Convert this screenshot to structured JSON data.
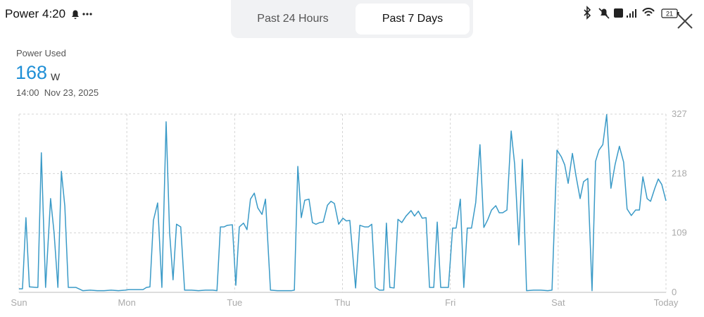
{
  "status_bar": {
    "app_title": "Power",
    "time": "4:20",
    "battery": "21"
  },
  "tabs": [
    "Past 24 Hours",
    "Past 7 Days"
  ],
  "summary": {
    "label": "Power Used",
    "value": "168",
    "unit": "W",
    "timestamp": "14:00  Nov 23, 2025"
  },
  "chart_data": {
    "type": "line",
    "color": "#3a9ac7",
    "grid": true,
    "xlim": [
      0,
      168
    ],
    "xticks": [
      {
        "value": 0,
        "label": "Sun"
      },
      {
        "value": 28,
        "label": "Mon"
      },
      {
        "value": 56,
        "label": "Tue"
      },
      {
        "value": 84,
        "label": "Thu"
      },
      {
        "value": 112,
        "label": "Fri"
      },
      {
        "value": 140,
        "label": "Sat"
      },
      {
        "value": 168,
        "label": "Today"
      }
    ],
    "ylim": [
      0,
      327
    ],
    "yticks": [
      0,
      109,
      218,
      327
    ],
    "series": [
      {
        "name": "Power Used",
        "x": [
          0,
          0.9,
          1.8,
          2.7,
          4.6,
          4.9,
          5.8,
          6.9,
          8.2,
          9.1,
          10.1,
          11.0,
          11.9,
          12.8,
          14.8,
          16.6,
          18.5,
          20.3,
          22.1,
          23.9,
          25.8,
          27.6,
          28.5,
          30.3,
          32.2,
          33.1,
          34.0,
          34.9,
          36.0,
          37.1,
          38.2,
          39.1,
          40.0,
          40.9,
          42.0,
          43.0,
          44.8,
          46.6,
          48.4,
          50.3,
          51.4,
          52.3,
          53.2,
          54.1,
          55.4,
          56.3,
          57.2,
          58.3,
          59.2,
          60.1,
          61.1,
          62.0,
          63.1,
          64.0,
          65.3,
          67.1,
          68.9,
          70.7,
          71.5,
          72.4,
          73.3,
          74.2,
          75.3,
          76.2,
          77.1,
          78.1,
          79.0,
          80.1,
          81.0,
          81.9,
          83.0,
          84.1,
          85.0,
          85.9,
          87.4,
          88.5,
          89.8,
          90.7,
          91.6,
          92.5,
          93.6,
          94.7,
          95.4,
          96.3,
          97.4,
          98.4,
          99.4,
          100.5,
          101.8,
          102.7,
          103.7,
          104.7,
          105.7,
          106.6,
          107.7,
          108.6,
          109.5,
          110.6,
          111.5,
          112.6,
          113.5,
          114.6,
          115.5,
          116.4,
          117.5,
          118.6,
          119.7,
          120.7,
          121.7,
          122.7,
          123.8,
          124.7,
          125.6,
          126.7,
          127.8,
          128.7,
          129.8,
          130.7,
          131.8,
          133.6,
          135.5,
          137.3,
          138.4,
          139.7,
          140.8,
          141.7,
          142.6,
          143.7,
          144.6,
          145.7,
          146.6,
          147.7,
          148.8,
          149.7,
          150.6,
          151.6,
          152.6,
          153.7,
          154.8,
          155.9,
          157.0,
          157.9,
          159.0,
          160.1,
          161.1,
          162.0,
          163.1,
          164.0,
          165.1,
          166.0,
          166.9,
          168
        ],
        "values": [
          6.5,
          6.5,
          137,
          10,
          9,
          9,
          256,
          9,
          172,
          110,
          9,
          222,
          158,
          9,
          9,
          3,
          4,
          3,
          3,
          4,
          3,
          4,
          5,
          5,
          5,
          9,
          10,
          132,
          164,
          9,
          313,
          110,
          23,
          125,
          120,
          4,
          4,
          3,
          4,
          4,
          3,
          120,
          120,
          123,
          124,
          13,
          120,
          127,
          115,
          171,
          182,
          155,
          143,
          171,
          4,
          3,
          3,
          3,
          4,
          231,
          137,
          169,
          171,
          128,
          125,
          128,
          129,
          160,
          167,
          163,
          125,
          136,
          131,
          132,
          8,
          123,
          120,
          120,
          125,
          9,
          4,
          4,
          127,
          9,
          8,
          134,
          128,
          140,
          150,
          140,
          149,
          136,
          137,
          9,
          9,
          129,
          9,
          9,
          9,
          118,
          118,
          171,
          9,
          118,
          118,
          165,
          271,
          119,
          133,
          151,
          159,
          146,
          146,
          151,
          296,
          235,
          87,
          244,
          3,
          4,
          4,
          3,
          4,
          261,
          249,
          234,
          200,
          255,
          215,
          172,
          203,
          209,
          3,
          240,
          261,
          271,
          326,
          191,
          235,
          268,
          239,
          153,
          141,
          151,
          151,
          212,
          172,
          167,
          191,
          208,
          198,
          168
        ]
      }
    ]
  }
}
